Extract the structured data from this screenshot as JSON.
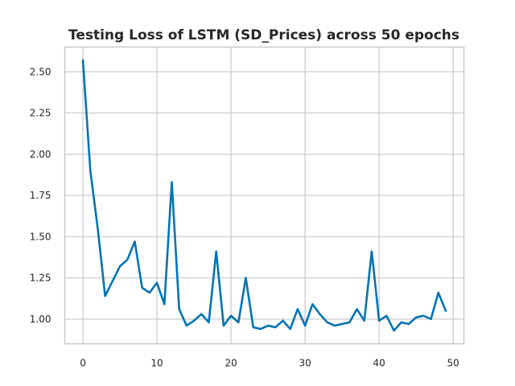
{
  "chart_data": {
    "type": "line",
    "title": "Testing Loss of LSTM (SD_Prices) across 50 epochs",
    "xlabel": "",
    "ylabel": "",
    "xlim": [
      -2.45,
      51.45
    ],
    "ylim": [
      0.85,
      2.65
    ],
    "x_ticks": [
      0,
      10,
      20,
      30,
      40,
      50
    ],
    "y_ticks": [
      1.0,
      1.25,
      1.5,
      1.75,
      2.0,
      2.25,
      2.5
    ],
    "x_tick_labels": [
      "0",
      "10",
      "20",
      "30",
      "40",
      "50"
    ],
    "y_tick_labels": [
      "1.00",
      "1.25",
      "1.50",
      "1.75",
      "2.00",
      "2.25",
      "2.50"
    ],
    "grid": true,
    "legend": "none",
    "series": [
      {
        "color": "#0173b2",
        "x": [
          0,
          1,
          2,
          3,
          4,
          5,
          6,
          7,
          8,
          9,
          10,
          11,
          12,
          13,
          14,
          15,
          16,
          17,
          18,
          19,
          20,
          21,
          22,
          23,
          24,
          25,
          26,
          27,
          28,
          29,
          30,
          31,
          32,
          33,
          34,
          35,
          36,
          37,
          38,
          39,
          40,
          41,
          42,
          43,
          44,
          45,
          46,
          47,
          48,
          49
        ],
        "values": [
          2.57,
          1.9,
          1.55,
          1.14,
          1.23,
          1.32,
          1.36,
          1.47,
          1.19,
          1.16,
          1.22,
          1.09,
          1.83,
          1.06,
          0.96,
          0.99,
          1.03,
          0.98,
          1.41,
          0.96,
          1.02,
          0.98,
          1.25,
          0.95,
          0.94,
          0.96,
          0.95,
          0.99,
          0.94,
          1.06,
          0.96,
          1.09,
          1.03,
          0.98,
          0.96,
          0.97,
          0.98,
          1.06,
          0.99,
          1.41,
          0.99,
          1.02,
          0.93,
          0.98,
          0.97,
          1.01,
          1.02,
          1.0,
          1.16,
          1.05
        ]
      }
    ]
  }
}
